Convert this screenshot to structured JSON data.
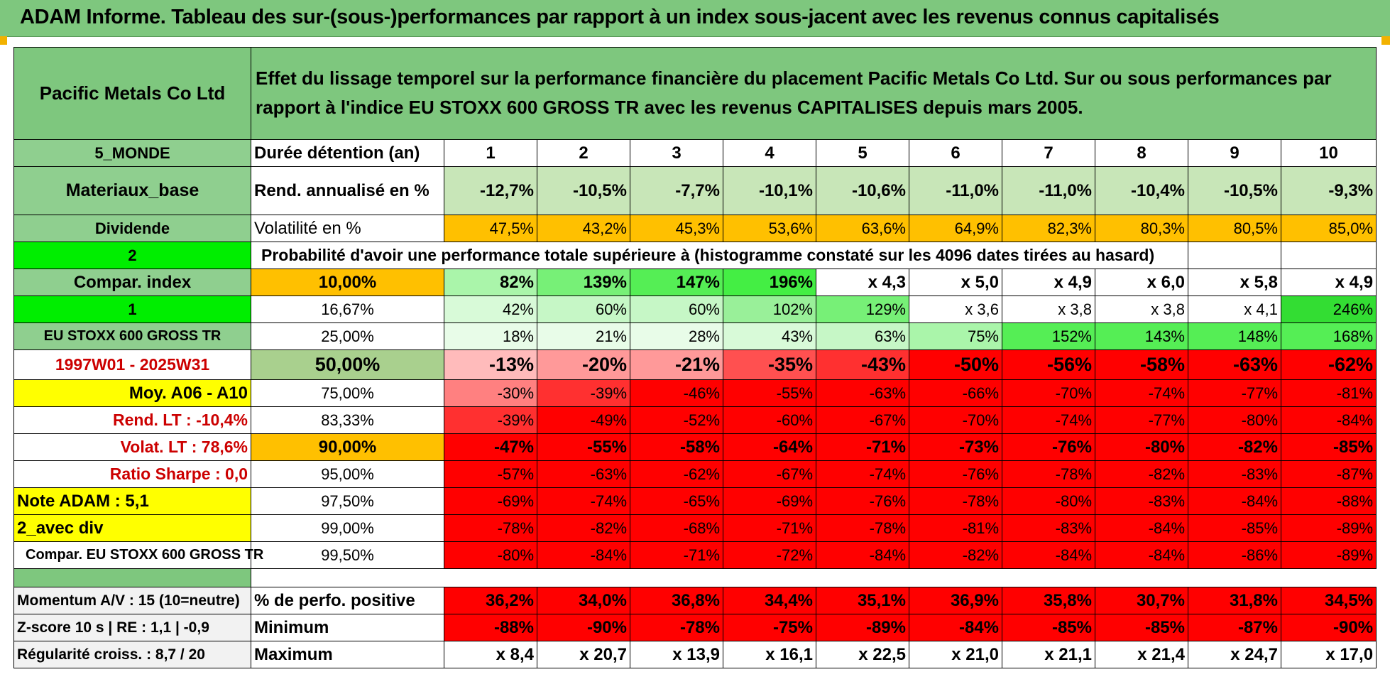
{
  "title": "ADAM Informe. Tableau des sur-(sous-)performances par rapport à un index sous-jacent avec les revenus connus capitalisés",
  "header": {
    "company": "Pacific Metals Co Ltd",
    "description": "Effet du lissage temporel sur la performance financière du placement Pacific Metals Co Ltd. Sur ou sous performances par rapport à l'indice EU STOXX 600 GROSS TR avec les revenus CAPITALISES depuis mars 2005."
  },
  "left": {
    "region": "5_MONDE",
    "sector": "Materiaux_base",
    "dividend_label": "Dividende",
    "val2": "2",
    "compar_index": "Compar. index",
    "val1": "1",
    "index_name": "EU STOXX 600 GROSS TR",
    "period": "1997W01 - 2025W31",
    "moy": "Moy. A06 - A10",
    "rend_lt": "Rend. LT :    -10,4%",
    "volat_lt": "Volat. LT :    78,6%",
    "sharpe": "Ratio Sharpe :     0,0",
    "note": "Note ADAM : 5,1",
    "avec_div": "2_avec div",
    "compar_full": "Compar. EU STOXX 600 GROSS TR"
  },
  "labels": {
    "duree": "Durée détention (an)",
    "rend": "Rend. annualisé en %",
    "vol": "Volatilité en %",
    "proba": "Probabilité d'avoir une performance totale supérieure à (histogramme constaté sur les 4096 dates tirées au hasard)"
  },
  "years": [
    "1",
    "2",
    "3",
    "4",
    "5",
    "6",
    "7",
    "8",
    "9",
    "10"
  ],
  "rend": [
    "-12,7%",
    "-10,5%",
    "-7,7%",
    "-10,1%",
    "-10,6%",
    "-11,0%",
    "-11,0%",
    "-10,4%",
    "-10,5%",
    "-9,3%"
  ],
  "vol": [
    "47,5%",
    "43,2%",
    "45,3%",
    "53,6%",
    "63,6%",
    "64,9%",
    "82,3%",
    "80,3%",
    "80,5%",
    "85,0%"
  ],
  "prob_rows": [
    {
      "pct": "10,00%",
      "vals": [
        "82%",
        "139%",
        "147%",
        "196%",
        "x 4,3",
        "x 5,0",
        "x 4,9",
        "x 6,0",
        "x 5,8",
        "x 4,9"
      ]
    },
    {
      "pct": "16,67%",
      "vals": [
        "42%",
        "60%",
        "60%",
        "102%",
        "129%",
        "x 3,6",
        "x 3,8",
        "x 3,8",
        "x 4,1",
        "246%"
      ]
    },
    {
      "pct": "25,00%",
      "vals": [
        "18%",
        "21%",
        "28%",
        "43%",
        "63%",
        "75%",
        "152%",
        "143%",
        "148%",
        "168%"
      ]
    },
    {
      "pct": "50,00%",
      "vals": [
        "-13%",
        "-20%",
        "-21%",
        "-35%",
        "-43%",
        "-50%",
        "-56%",
        "-58%",
        "-63%",
        "-62%"
      ]
    },
    {
      "pct": "75,00%",
      "vals": [
        "-30%",
        "-39%",
        "-46%",
        "-55%",
        "-63%",
        "-66%",
        "-70%",
        "-74%",
        "-77%",
        "-81%"
      ]
    },
    {
      "pct": "83,33%",
      "vals": [
        "-39%",
        "-49%",
        "-52%",
        "-60%",
        "-67%",
        "-70%",
        "-74%",
        "-77%",
        "-80%",
        "-84%"
      ]
    },
    {
      "pct": "90,00%",
      "vals": [
        "-47%",
        "-55%",
        "-58%",
        "-64%",
        "-71%",
        "-73%",
        "-76%",
        "-80%",
        "-82%",
        "-85%"
      ]
    },
    {
      "pct": "95,00%",
      "vals": [
        "-57%",
        "-63%",
        "-62%",
        "-67%",
        "-74%",
        "-76%",
        "-78%",
        "-82%",
        "-83%",
        "-87%"
      ]
    },
    {
      "pct": "97,50%",
      "vals": [
        "-69%",
        "-74%",
        "-65%",
        "-69%",
        "-76%",
        "-78%",
        "-80%",
        "-83%",
        "-84%",
        "-88%"
      ]
    },
    {
      "pct": "99,00%",
      "vals": [
        "-78%",
        "-82%",
        "-68%",
        "-71%",
        "-78%",
        "-81%",
        "-83%",
        "-84%",
        "-85%",
        "-89%"
      ]
    },
    {
      "pct": "99,50%",
      "vals": [
        "-80%",
        "-84%",
        "-71%",
        "-72%",
        "-84%",
        "-82%",
        "-84%",
        "-84%",
        "-86%",
        "-89%"
      ]
    }
  ],
  "bottom": {
    "momentum": "Momentum A/V : 15 (10=neutre)",
    "zscore": "Z-score 10 s | RE : 1,1 | -0,9",
    "regularite": "Régularité croiss. : 8,7 / 20",
    "pos_label": "% de perfo. positive",
    "min_label": "Minimum",
    "max_label": "Maximum",
    "pos": [
      "36,2%",
      "34,0%",
      "36,8%",
      "34,4%",
      "35,1%",
      "36,9%",
      "35,8%",
      "30,7%",
      "31,8%",
      "34,5%"
    ],
    "min": [
      "-88%",
      "-90%",
      "-78%",
      "-75%",
      "-89%",
      "-84%",
      "-85%",
      "-85%",
      "-87%",
      "-90%"
    ],
    "max": [
      "x 8,4",
      "x 20,7",
      "x 13,9",
      "x 16,1",
      "x 22,5",
      "x 21,0",
      "x 21,1",
      "x 21,4",
      "x 24,7",
      "x 17,0"
    ]
  },
  "colors": {
    "header_green": "#7ec77e",
    "orange": "#ffc000",
    "red": "#ff0000",
    "yellow": "#ffff00",
    "bright_green": "#00ee00"
  }
}
